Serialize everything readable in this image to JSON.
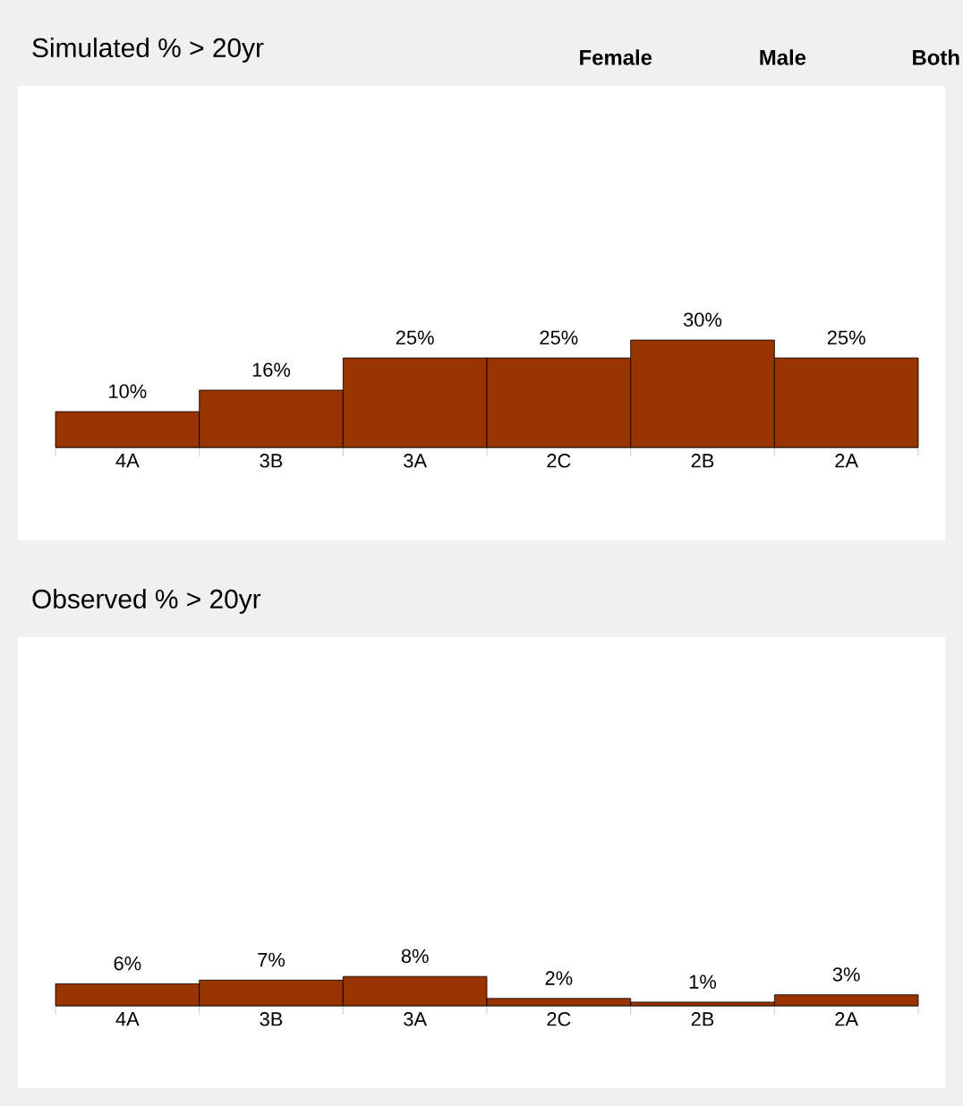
{
  "chart_data": [
    {
      "type": "bar",
      "title": "Simulated % > 20yr",
      "categories": [
        "4A",
        "3B",
        "3A",
        "2C",
        "2B",
        "2A"
      ],
      "values": [
        10,
        16,
        25,
        25,
        30,
        25
      ],
      "value_labels": [
        "10%",
        "16%",
        "25%",
        "25%",
        "30%",
        "25%"
      ],
      "color": "#993300",
      "ylim": [
        0,
        100
      ],
      "tick_labels": "x",
      "annotations": [
        "Female",
        "Male",
        "Both"
      ]
    },
    {
      "type": "bar",
      "title": "Observed % > 20yr",
      "categories": [
        "4A",
        "3B",
        "3A",
        "2C",
        "2B",
        "2A"
      ],
      "values": [
        6,
        7,
        8,
        2,
        1,
        3
      ],
      "value_labels": [
        "6%",
        "7%",
        "8%",
        "2%",
        "1%",
        "3%"
      ],
      "color": "#993300",
      "ylim": [
        0,
        100
      ],
      "tick_labels": "x"
    }
  ]
}
